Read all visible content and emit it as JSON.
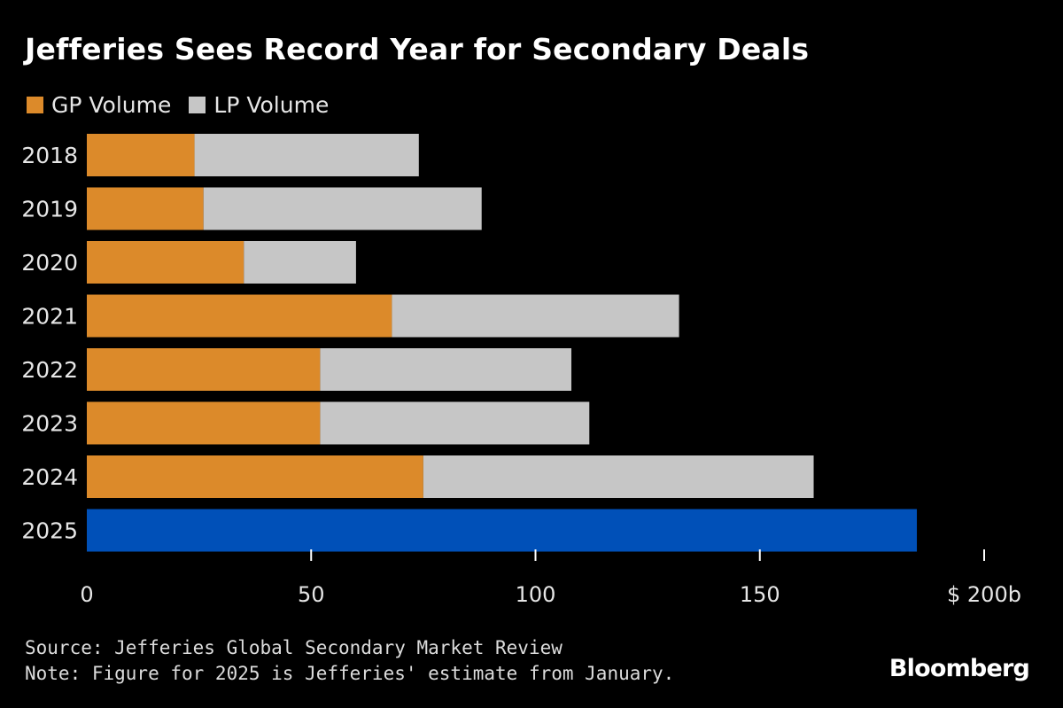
{
  "chart_data": {
    "type": "bar",
    "orientation": "horizontal",
    "stacked": true,
    "title": "Jefferies Sees Record Year for Secondary Deals",
    "categories": [
      "2018",
      "2019",
      "2020",
      "2021",
      "2022",
      "2023",
      "2024",
      "2025"
    ],
    "series": [
      {
        "name": "GP Volume",
        "color": "#dc8a2a",
        "values": [
          24,
          26,
          35,
          68,
          52,
          52,
          75,
          null
        ]
      },
      {
        "name": "LP Volume",
        "color": "#c6c6c6",
        "values": [
          50,
          62,
          25,
          64,
          56,
          60,
          87,
          null
        ]
      }
    ],
    "totals_only": [
      {
        "category": "2025",
        "value": 185,
        "color": "#0050b8"
      }
    ],
    "xlim": [
      0,
      200
    ],
    "xticks": [
      0,
      50,
      100,
      150,
      200
    ],
    "xtick_labels": [
      "0",
      "50",
      "100",
      "150",
      "$ 200b"
    ],
    "grid": false,
    "legend_position": "top-left"
  },
  "footer": {
    "source": "Source: Jefferies Global Secondary Market Review",
    "note": "Note: Figure for 2025 is Jefferies' estimate from January."
  },
  "brand": "Bloomberg"
}
